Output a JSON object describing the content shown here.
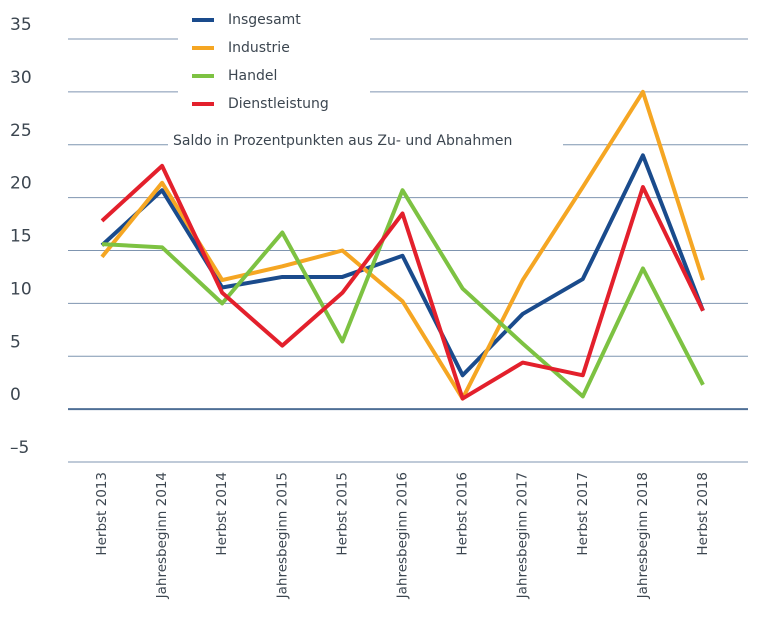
{
  "chart_data": {
    "type": "line",
    "subtitle": "Saldo in Prozentpunkten aus Zu- und Abnahmen",
    "categories": [
      "Herbst 2013",
      "Jahresbeginn 2014",
      "Herbst 2014",
      "Jahresbeginn 2015",
      "Herbst 2015",
      "Jahresbeginn 2016",
      "Herbst 2016",
      "Jahresbeginn 2017",
      "Herbst 2017",
      "Jahresbeginn 2018",
      "Herbst 2018"
    ],
    "series": [
      {
        "name": "Insgesamt",
        "color": "#1a4b8c",
        "values": [
          15.5,
          20.7,
          11.5,
          12.5,
          12.5,
          14.5,
          3.2,
          9,
          12.3,
          24,
          9.3
        ]
      },
      {
        "name": "Industrie",
        "color": "#f5a623",
        "values": [
          14.4,
          21.4,
          12.2,
          13.5,
          15,
          10.2,
          1,
          12.2,
          21,
          30,
          12.2
        ]
      },
      {
        "name": "Handel",
        "color": "#7dc242",
        "values": [
          15.6,
          15.3,
          10,
          16.7,
          6.4,
          20.7,
          11.4,
          6.2,
          1.2,
          13.3,
          2.3
        ]
      },
      {
        "name": "Dienstleistung",
        "color": "#e3202c",
        "values": [
          17.8,
          23,
          11,
          6,
          11,
          18.5,
          1,
          4.4,
          3.2,
          21,
          9.3
        ]
      }
    ],
    "ylim": [
      -5,
      35
    ],
    "yticks": [
      {
        "value": -5,
        "label": "–5"
      },
      0,
      5,
      10,
      15,
      20,
      25,
      30,
      35
    ],
    "grid": true
  }
}
